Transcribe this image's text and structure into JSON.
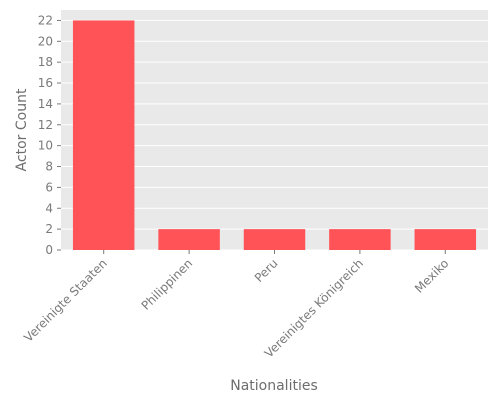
{
  "chart_data": {
    "type": "bar",
    "categories": [
      "Vereinigte Staaten",
      "Philippinen",
      "Peru",
      "Vereinigtes Königreich",
      "Mexiko"
    ],
    "values": [
      22,
      2,
      2,
      2,
      2
    ],
    "xlabel": "Nationalities",
    "ylabel": "Actor Count",
    "ylim": [
      0,
      23
    ],
    "yticks": [
      0,
      2,
      4,
      6,
      8,
      10,
      12,
      14,
      16,
      18,
      20,
      22
    ],
    "grid": true,
    "legend": false
  },
  "colors": {
    "bar": "#ff5358",
    "plot_background": "#e9e9e9",
    "grid": "#ffffff"
  }
}
